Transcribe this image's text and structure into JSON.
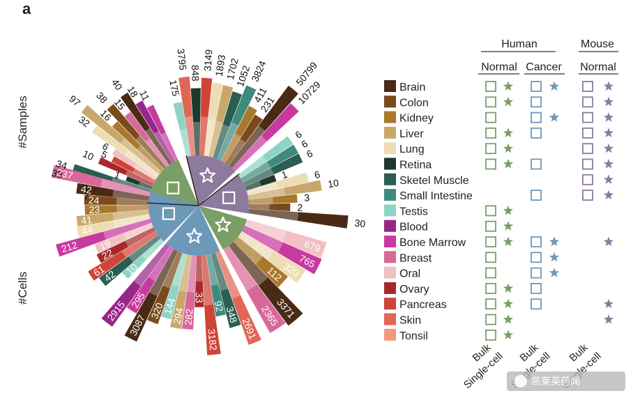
{
  "panel_letter": "a",
  "chart_data": {
    "type": "radial-bar",
    "y_axis_titles": [
      "#Samples",
      "#Cells"
    ],
    "tissues": [
      {
        "name": "Brain",
        "color": "#4a2a14"
      },
      {
        "name": "Colon",
        "color": "#7a4a1c"
      },
      {
        "name": "Kidney",
        "color": "#a9782c"
      },
      {
        "name": "Liver",
        "color": "#c8a86a"
      },
      {
        "name": "Lung",
        "color": "#eedcb4"
      },
      {
        "name": "Retina",
        "color": "#1c3a2c"
      },
      {
        "name": "Sketel Muscle",
        "color": "#2a5e50"
      },
      {
        "name": "Small Intestine",
        "color": "#3e8a7e"
      },
      {
        "name": "Testis",
        "color": "#8ed4c4"
      },
      {
        "name": "Blood",
        "color": "#98268a"
      },
      {
        "name": "Bone Marrow",
        "color": "#c83aa0"
      },
      {
        "name": "Breast",
        "color": "#d8689a"
      },
      {
        "name": "Oral",
        "color": "#f2c0c2"
      },
      {
        "name": "Ovary",
        "color": "#a8282a"
      },
      {
        "name": "Pancreas",
        "color": "#d04438"
      },
      {
        "name": "Skin",
        "color": "#e06656"
      },
      {
        "name": "Tonsil",
        "color": "#f09a7a"
      }
    ],
    "sectors": [
      {
        "id": "human-normal-samples",
        "symbol": "square",
        "color": "#7a9e66",
        "bars": [
          {
            "tissue": "Tonsil",
            "value": 7,
            "label": "7"
          },
          {
            "tissue": "Skin",
            "value": 8,
            "label": "8"
          },
          {
            "tissue": "Small Intestine",
            "value": 38,
            "label": "38"
          },
          {
            "tissue": "Sketel Muscle",
            "value": 34,
            "label": "34"
          },
          {
            "tissue": "Retina",
            "value": 1,
            "label": "1"
          },
          {
            "tissue": "Ovary",
            "value": 10,
            "label": "10"
          },
          {
            "tissue": "Pancreas",
            "value": 5,
            "label": "5"
          },
          {
            "tissue": "Oral",
            "value": 6,
            "label": "6"
          },
          {
            "tissue": "Lung",
            "value": 32,
            "label": "32"
          },
          {
            "tissue": "Liver",
            "value": 97,
            "label": "97"
          },
          {
            "tissue": "Kidney",
            "value": 16,
            "label": "16"
          },
          {
            "tissue": "Colon",
            "value": 38,
            "label": "38"
          },
          {
            "tissue": "Breast",
            "value": 15,
            "label": "15"
          },
          {
            "tissue": "Brain",
            "value": 40,
            "label": "40"
          },
          {
            "tissue": "Blood",
            "value": 18,
            "label": "18"
          },
          {
            "tissue": "Bone Marrow",
            "value": 11,
            "label": "11"
          }
        ]
      },
      {
        "id": "mouse-single-cell-samples",
        "symbol": "star",
        "color": "#8e7a9c",
        "bars": [
          {
            "tissue": "Testis",
            "value": 175,
            "label": "175"
          },
          {
            "tissue": "Skin",
            "value": 3795,
            "label": "3795"
          },
          {
            "tissue": "Retina",
            "value": 848,
            "label": "848"
          },
          {
            "tissue": "Pancreas",
            "value": 3149,
            "label": "3149"
          },
          {
            "tissue": "Lung",
            "value": 1893,
            "label": "1893"
          },
          {
            "tissue": "Liver",
            "value": 1702,
            "label": "1702"
          },
          {
            "tissue": "Sketel Muscle",
            "value": 1052,
            "label": "1052"
          },
          {
            "tissue": "Small Intestine",
            "value": 3824,
            "label": "3824"
          },
          {
            "tissue": "Kidney",
            "value": 411,
            "label": "411"
          },
          {
            "tissue": "Colon",
            "value": 231,
            "label": "231"
          },
          {
            "tissue": "Brain",
            "value": 50799,
            "label": "50799"
          },
          {
            "tissue": "Bone Marrow",
            "value": 10729,
            "label": "10729"
          }
        ]
      },
      {
        "id": "mouse-bulk-samples",
        "symbol": "square",
        "color": "#8e7a9c",
        "bars": [
          {
            "tissue": "Testis",
            "value": 6,
            "label": "6"
          },
          {
            "tissue": "Small Intestine",
            "value": 6,
            "label": "6"
          },
          {
            "tissue": "Sketel Muscle",
            "value": 6,
            "label": "6"
          },
          {
            "tissue": "Retina",
            "value": 1,
            "label": "1"
          },
          {
            "tissue": "Lung",
            "value": 6,
            "label": "6"
          },
          {
            "tissue": "Liver",
            "value": 10,
            "label": "10"
          },
          {
            "tissue": "Kidney",
            "value": 3,
            "label": "3"
          },
          {
            "tissue": "Colon",
            "value": 2,
            "label": "2"
          },
          {
            "tissue": "Brain",
            "value": 30,
            "label": "30"
          }
        ]
      },
      {
        "id": "human-cancer-single-cell",
        "symbol": "star",
        "color": "#7a9e66",
        "bars": [
          {
            "tissue": "Oral",
            "value": 679,
            "label": "679"
          },
          {
            "tissue": "Bone Marrow",
            "value": 765,
            "label": "765"
          },
          {
            "tissue": "Lung",
            "value": 320,
            "label": "320"
          },
          {
            "tissue": "Kidney",
            "value": 112,
            "label": "112"
          },
          {
            "tissue": "Brain",
            "value": 3371,
            "label": "3371"
          },
          {
            "tissue": "Breast",
            "value": 2365,
            "label": "2365"
          }
        ]
      },
      {
        "id": "human-normal-single-cell-cells",
        "symbol": "star",
        "color": "#6e98b8",
        "bars": [
          {
            "tissue": "Skin",
            "value": 2691,
            "label": "2691"
          },
          {
            "tissue": "Sketel Muscle",
            "value": 348,
            "label": "348"
          },
          {
            "tissue": "Small Intestine",
            "value": 92,
            "label": "92"
          },
          {
            "tissue": "Pancreas",
            "value": 3182,
            "label": "3182"
          },
          {
            "tissue": "Ovary",
            "value": 33,
            "label": "33"
          },
          {
            "tissue": "Breast",
            "value": 282,
            "label": "282"
          },
          {
            "tissue": "Liver",
            "value": 294,
            "label": "294"
          },
          {
            "tissue": "Testis",
            "value": 144,
            "label": "144"
          },
          {
            "tissue": "Colon",
            "value": 320,
            "label": "320"
          },
          {
            "tissue": "Brain",
            "value": 3087,
            "label": "3087"
          },
          {
            "tissue": "Bone Marrow",
            "value": 295,
            "label": "295"
          },
          {
            "tissue": "Blood",
            "value": 2915,
            "label": "2915"
          }
        ]
      },
      {
        "id": "human-normal-bulk-cells",
        "symbol": "square",
        "color": "#6e98b8",
        "bars": [
          {
            "tissue": "Testis",
            "value": 10,
            "label": "10"
          },
          {
            "tissue": "Sketel Muscle",
            "value": 42,
            "label": "42"
          },
          {
            "tissue": "Pancreas",
            "value": 61,
            "label": "61"
          },
          {
            "tissue": "Ovary",
            "value": 22,
            "label": "22"
          },
          {
            "tissue": "Oral",
            "value": 19,
            "label": "19"
          },
          {
            "tissue": "Bone Marrow",
            "value": 212,
            "label": "212"
          },
          {
            "tissue": "Lung",
            "value": 44,
            "label": "44"
          },
          {
            "tissue": "Liver",
            "value": 41,
            "label": "41"
          },
          {
            "tissue": "Kidney",
            "value": 23,
            "label": "23"
          },
          {
            "tissue": "Colon",
            "value": 24,
            "label": "24"
          },
          {
            "tissue": "Brain",
            "value": 42,
            "label": "42"
          },
          {
            "tissue": "Breast",
            "value": 237,
            "label": "237"
          }
        ]
      }
    ]
  },
  "availability_table": {
    "group_headers": [
      {
        "label": "Human"
      },
      {
        "label": "Mouse"
      }
    ],
    "sub_headers": [
      {
        "label": "Normal"
      },
      {
        "label": "Cancer"
      },
      {
        "label": "Normal"
      }
    ],
    "footer_labels": [
      "Bulk",
      "Single-cell",
      "Bulk",
      "Single-cell",
      "Bulk",
      "Single-cell"
    ],
    "group_colors": {
      "human_normal": "#7a9e66",
      "human_cancer": "#6e98b8",
      "mouse_normal": "#8e7a9c"
    },
    "marks": {
      "Brain": {
        "hn": [
          "square",
          "star"
        ],
        "hc": [
          "square",
          "star"
        ],
        "mn": [
          "square",
          "star"
        ]
      },
      "Colon": {
        "hn": [
          "square",
          "star"
        ],
        "hc": [
          "square"
        ],
        "mn": [
          "square",
          "star"
        ]
      },
      "Kidney": {
        "hn": [
          "square"
        ],
        "hc": [
          "square",
          "star"
        ],
        "mn": [
          "square",
          "star"
        ]
      },
      "Liver": {
        "hn": [
          "square",
          "star"
        ],
        "hc": [
          "square"
        ],
        "mn": [
          "square",
          "star"
        ]
      },
      "Lung": {
        "hn": [
          "square",
          "star"
        ],
        "hc": [],
        "mn": [
          "square",
          "star"
        ]
      },
      "Retina": {
        "hn": [
          "square",
          "star"
        ],
        "hc": [
          "square"
        ],
        "mn": [
          "square",
          "star"
        ]
      },
      "Sketel Muscle": {
        "hn": [],
        "hc": [],
        "mn": [
          "square",
          "star"
        ]
      },
      "Small Intestine": {
        "hn": [],
        "hc": [
          "square"
        ],
        "mn": [
          "square",
          "star"
        ]
      },
      "Testis": {
        "hn": [
          "square",
          "star"
        ],
        "hc": [],
        "mn": []
      },
      "Blood": {
        "hn": [
          "square",
          "star"
        ],
        "hc": [],
        "mn": []
      },
      "Bone Marrow": {
        "hn": [
          "square",
          "star"
        ],
        "hc": [
          "square",
          "star"
        ],
        "mn": [
          "star"
        ]
      },
      "Breast": {
        "hn": [
          "square"
        ],
        "hc": [
          "square",
          "star"
        ],
        "mn": []
      },
      "Oral": {
        "hn": [
          "square"
        ],
        "hc": [
          "square",
          "star"
        ],
        "mn": []
      },
      "Ovary": {
        "hn": [
          "square",
          "star"
        ],
        "hc": [
          "square"
        ],
        "mn": []
      },
      "Pancreas": {
        "hn": [
          "square",
          "star"
        ],
        "hc": [
          "square"
        ],
        "mn": [
          "star"
        ]
      },
      "Skin": {
        "hn": [
          "square",
          "star"
        ],
        "hc": [],
        "mn": [
          "star"
        ]
      },
      "Tonsil": {
        "hn": [
          "square",
          "star"
        ],
        "hc": [],
        "mn": []
      }
    }
  },
  "watermark": "凯莱英药闻"
}
